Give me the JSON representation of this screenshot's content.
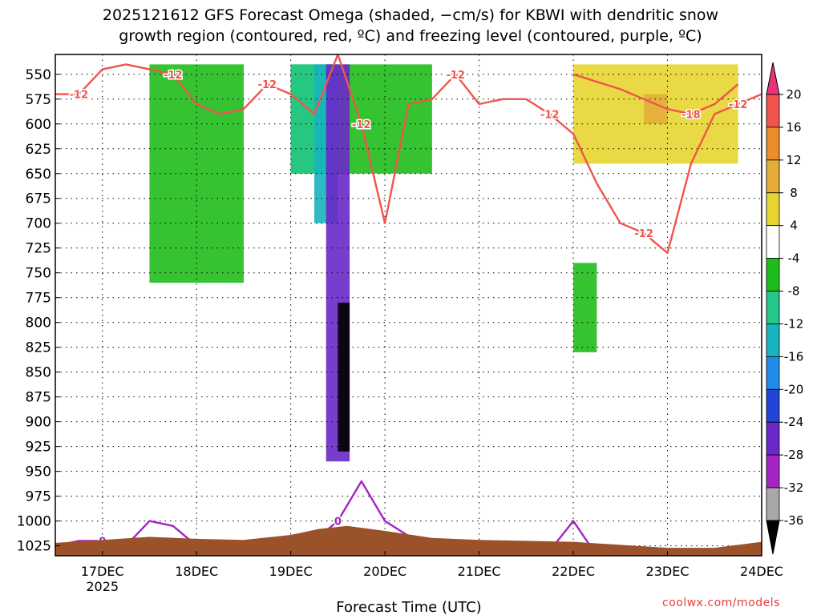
{
  "title": "2025121612 GFS Forecast Omega (shaded, −cm/s) for KBWI with dendritic snow\ngrowth region (contoured, red, ºC) and freezing level (contoured, purple, ºC)",
  "credit": "coolwx.com/models",
  "chart_data": {
    "type": "heatmap",
    "title": "2025121612 GFS Forecast Omega (shaded, −cm/s) for KBWI with dendritic snow growth region (contoured, red, ºC) and freezing level (contoured, purple, ºC)",
    "xlabel": "Forecast Time (UTC)",
    "ylabel": "",
    "x_ticks": [
      "17DEC\n2025",
      "18DEC",
      "19DEC",
      "20DEC",
      "21DEC",
      "22DEC",
      "23DEC",
      "24DEC"
    ],
    "y_ticks": [
      550,
      575,
      600,
      625,
      650,
      675,
      700,
      725,
      750,
      775,
      800,
      825,
      850,
      875,
      900,
      925,
      950,
      975,
      1000,
      1025
    ],
    "ylim": [
      530,
      1035
    ],
    "y_inverted": true,
    "grid": true,
    "colorbar": {
      "labels": [
        20,
        16,
        12,
        8,
        4,
        -4,
        -8,
        -12,
        -16,
        -20,
        -24,
        -28,
        -32,
        -36
      ],
      "colors": [
        "#e8357a",
        "#f0554d",
        "#ec8d2a",
        "#e3ad38",
        "#e6d531",
        "#ffffff",
        "#1fbd1c",
        "#25c888",
        "#17b4bd",
        "#1e8ce8",
        "#2244d8",
        "#6a28c8",
        "#a424c4",
        "#a8a8a8",
        "#000000"
      ]
    },
    "shading_regions": [
      {
        "color": "#1fbd1c",
        "omega_range": "-8 to -4",
        "time": "17DEC 12Z - 18DEC 12Z",
        "levels": "540-760"
      },
      {
        "color": "#1fbd1c",
        "omega_range": "-8 to -4",
        "time": "19DEC 00Z - 20DEC 12Z",
        "levels": "540-650"
      },
      {
        "color": "#25c888",
        "omega_range": "-12 to -8",
        "time": "19DEC 00Z - 19DEC 12Z",
        "levels": "540-650"
      },
      {
        "color": "#17b4bd",
        "omega_range": "-16 to -12",
        "time": "19DEC 06Z - 19DEC 12Z",
        "levels": "540-700"
      },
      {
        "color": "#6a28c8",
        "omega_range": "-28 to -24",
        "time": "19DEC 09Z - 19DEC 15Z",
        "levels": "540-940"
      },
      {
        "color": "#000000",
        "omega_range": "< -36",
        "time": "19DEC 12Z - 19DEC 15Z",
        "levels": "780-930"
      },
      {
        "color": "#e6d531",
        "omega_range": "4 to 8",
        "time": "22DEC 00Z - 23DEC 18Z",
        "levels": "540-640"
      },
      {
        "color": "#e3ad38",
        "omega_range": "8 to 12",
        "time": "22DEC 18Z - 23DEC 00Z",
        "levels": "570-600"
      },
      {
        "color": "#1fbd1c",
        "omega_range": "-8 to -4",
        "time": "22DEC 00Z - 22DEC 06Z",
        "levels": "740-830"
      }
    ],
    "series": [
      {
        "name": "dendritic snow growth region (-12 ºC)",
        "color": "#f0554d",
        "contour_labels": [
          "-12",
          "-12",
          "-12",
          "-12",
          "-12",
          "-12",
          "-12",
          "-12"
        ],
        "x": [
          "16DEC 12Z",
          "16DEC 18Z",
          "17DEC 00Z",
          "17DEC 06Z",
          "17DEC 12Z",
          "17DEC 18Z",
          "18DEC 00Z",
          "18DEC 06Z",
          "18DEC 12Z",
          "18DEC 18Z",
          "19DEC 00Z",
          "19DEC 06Z",
          "19DEC 12Z",
          "19DEC 18Z",
          "20DEC 00Z",
          "20DEC 06Z",
          "20DEC 12Z",
          "20DEC 18Z",
          "21DEC 00Z",
          "21DEC 06Z",
          "21DEC 12Z",
          "21DEC 18Z",
          "22DEC 00Z",
          "22DEC 06Z",
          "22DEC 12Z",
          "22DEC 18Z",
          "23DEC 00Z",
          "23DEC 06Z",
          "23DEC 12Z",
          "23DEC 18Z",
          "24DEC 00Z"
        ],
        "y": [
          570,
          570,
          545,
          540,
          545,
          550,
          580,
          590,
          585,
          560,
          570,
          590,
          530,
          600,
          700,
          580,
          575,
          550,
          580,
          575,
          575,
          590,
          610,
          660,
          700,
          710,
          730,
          640,
          590,
          580,
          570
        ]
      },
      {
        "name": "-18 ºC contour",
        "color": "#f0554d",
        "contour_labels": [
          "-18"
        ],
        "x": [
          "22DEC 00Z",
          "22DEC 12Z",
          "23DEC 00Z",
          "23DEC 06Z",
          "23DEC 12Z",
          "23DEC 18Z"
        ],
        "y": [
          550,
          565,
          585,
          590,
          580,
          560
        ]
      },
      {
        "name": "freezing level (0 ºC)",
        "color": "#a424c4",
        "contour_labels": [
          "0",
          "0",
          "0",
          "0",
          "0",
          "0"
        ],
        "x": [
          "16DEC 12Z",
          "16DEC 18Z",
          "17DEC 00Z",
          "17DEC 06Z",
          "17DEC 12Z",
          "17DEC 18Z",
          "18DEC 00Z",
          "18DEC 06Z",
          "18DEC 12Z",
          "18DEC 18Z",
          "19DEC 00Z",
          "19DEC 06Z",
          "19DEC 12Z",
          "19DEC 18Z",
          "20DEC 00Z",
          "20DEC 06Z",
          "20DEC 12Z",
          "20DEC 18Z",
          "21DEC 00Z",
          "21DEC 06Z",
          "21DEC 12Z",
          "21DEC 18Z",
          "22DEC 00Z",
          "22DEC 06Z",
          "22DEC 12Z",
          "22DEC 18Z",
          "23DEC 00Z",
          "23DEC 06Z",
          "23DEC 12Z",
          "23DEC 18Z",
          "24DEC 00Z"
        ],
        "y": [
          1025,
          1020,
          1020,
          1025,
          1000,
          1005,
          1025,
          1025,
          1025,
          1025,
          1025,
          1020,
          1000,
          960,
          1000,
          1015,
          1030,
          1030,
          1030,
          1030,
          1030,
          1030,
          1000,
          1035,
          1035,
          1035,
          1035,
          1035,
          1035,
          1035,
          1035
        ]
      }
    ],
    "terrain": {
      "color": "#9a522a",
      "description": "surface pressure shading near 1010-1025 hPa"
    }
  }
}
